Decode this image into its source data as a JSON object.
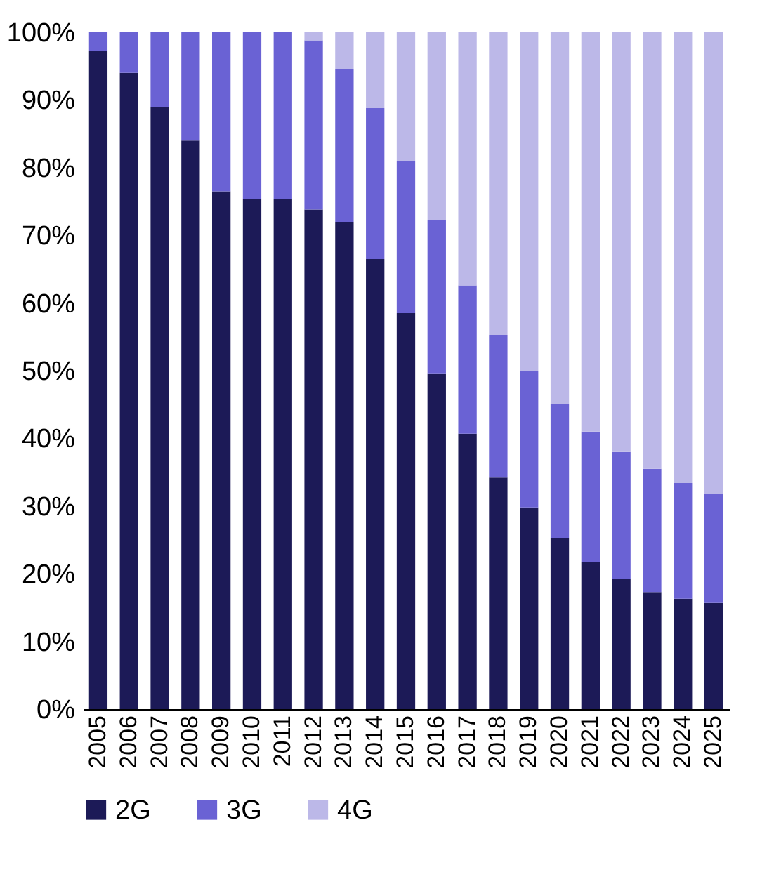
{
  "chart_data": {
    "type": "bar",
    "stacked": true,
    "legend": "bottom",
    "categories": [
      "2005",
      "2006",
      "2007",
      "2008",
      "2009",
      "2010",
      "2011",
      "2012",
      "2013",
      "2014",
      "2015",
      "2016",
      "2017",
      "2018",
      "2019",
      "2020",
      "2021",
      "2022",
      "2023",
      "2024",
      "2025"
    ],
    "ylim": [
      0,
      100
    ],
    "yticks": [
      {
        "value": 0,
        "label": "0%"
      },
      {
        "value": 10,
        "label": "10%"
      },
      {
        "value": 20,
        "label": "20%"
      },
      {
        "value": 30,
        "label": "30%"
      },
      {
        "value": 40,
        "label": "40%"
      },
      {
        "value": 50,
        "label": "50%"
      },
      {
        "value": 60,
        "label": "60%"
      },
      {
        "value": 70,
        "label": "70%"
      },
      {
        "value": 80,
        "label": "80%"
      },
      {
        "value": 90,
        "label": "90%"
      },
      {
        "value": 100,
        "label": "100%"
      }
    ],
    "series": [
      {
        "name": "2G",
        "color": "#1c1a57",
        "values": [
          97.2,
          94,
          89,
          84,
          76.5,
          75.3,
          75.3,
          73.8,
          72,
          66.5,
          58.5,
          49.6,
          40.7,
          34.2,
          29.8,
          25.3,
          21.7,
          19.3,
          17.3,
          16.3,
          15.7
        ]
      },
      {
        "name": "3G",
        "color": "#6a62d4",
        "values": [
          2.8,
          6,
          11,
          16,
          23.5,
          24.7,
          24.7,
          25,
          22.6,
          22.3,
          22.5,
          22.6,
          21.9,
          21.1,
          20.2,
          19.8,
          19.3,
          18.7,
          18.2,
          17.1,
          16.1
        ]
      },
      {
        "name": "4G",
        "color": "#bcb8e8",
        "values": [
          0,
          0,
          0,
          0,
          0,
          0,
          0,
          1.2,
          5.4,
          11.2,
          19,
          27.8,
          37.4,
          44.7,
          50,
          54.9,
          59,
          62,
          64.5,
          66.6,
          68.2
        ]
      }
    ]
  }
}
